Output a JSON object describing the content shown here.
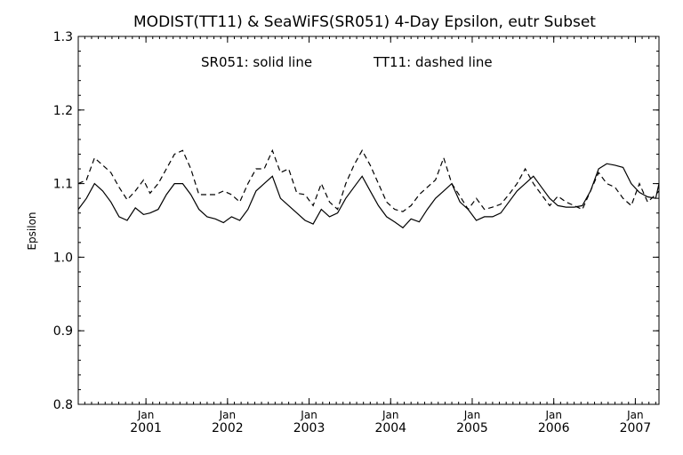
{
  "chart_data": {
    "type": "line",
    "title": "MODIST(TT11) & SeaWiFS(SR051) 4-Day Epsilon, eutr Subset",
    "legend_text": {
      "solid": "SR051: solid line",
      "dashed": "TT11: dashed line"
    },
    "ylabel": "Epsilon",
    "xlabel": "",
    "ylim": [
      0.8,
      1.3
    ],
    "yticks": [
      "0.8",
      "0.9",
      "1.0",
      "1.1",
      "1.2",
      "1.3"
    ],
    "xlim": [
      2000.17,
      2007.29
    ],
    "xticks": [
      {
        "month": "Jan",
        "year": "2001",
        "x": 2001.0
      },
      {
        "month": "Jan",
        "year": "2002",
        "x": 2002.0
      },
      {
        "month": "Jan",
        "year": "2003",
        "x": 2003.0
      },
      {
        "month": "Jan",
        "year": "2004",
        "x": 2004.0
      },
      {
        "month": "Jan",
        "year": "2005",
        "x": 2005.0
      },
      {
        "month": "Jan",
        "year": "2006",
        "x": 2006.0
      },
      {
        "month": "Jan",
        "year": "2007",
        "x": 2007.0
      }
    ],
    "grid": false,
    "series": [
      {
        "name": "SR051",
        "style": "solid",
        "color": "#000000",
        "x": [
          2000.17,
          2000.27,
          2000.37,
          2000.47,
          2000.57,
          2000.67,
          2000.77,
          2000.87,
          2000.97,
          2001.05,
          2001.15,
          2001.25,
          2001.35,
          2001.45,
          2001.55,
          2001.65,
          2001.75,
          2001.85,
          2001.95,
          2002.05,
          2002.15,
          2002.25,
          2002.35,
          2002.45,
          2002.55,
          2002.65,
          2002.75,
          2002.85,
          2002.95,
          2003.05,
          2003.15,
          2003.25,
          2003.35,
          2003.45,
          2003.55,
          2003.65,
          2003.75,
          2003.85,
          2003.95,
          2004.05,
          2004.15,
          2004.25,
          2004.35,
          2004.45,
          2004.55,
          2004.65,
          2004.75,
          2004.85,
          2004.95,
          2005.05,
          2005.15,
          2005.25,
          2005.35,
          2005.45,
          2005.55,
          2005.65,
          2005.75,
          2005.85,
          2005.95,
          2006.05,
          2006.15,
          2006.25,
          2006.35,
          2006.45,
          2006.55,
          2006.65,
          2006.75,
          2006.85,
          2006.95,
          2007.05,
          2007.15,
          2007.25,
          2007.29
        ],
        "y": [
          1.065,
          1.08,
          1.1,
          1.09,
          1.075,
          1.055,
          1.05,
          1.067,
          1.058,
          1.06,
          1.065,
          1.085,
          1.1,
          1.1,
          1.085,
          1.065,
          1.055,
          1.052,
          1.047,
          1.055,
          1.05,
          1.065,
          1.09,
          1.1,
          1.11,
          1.08,
          1.07,
          1.06,
          1.05,
          1.045,
          1.065,
          1.055,
          1.06,
          1.08,
          1.095,
          1.11,
          1.09,
          1.07,
          1.055,
          1.048,
          1.04,
          1.052,
          1.048,
          1.065,
          1.08,
          1.09,
          1.1,
          1.075,
          1.065,
          1.05,
          1.055,
          1.055,
          1.06,
          1.075,
          1.09,
          1.1,
          1.11,
          1.095,
          1.08,
          1.07,
          1.068,
          1.068,
          1.07,
          1.09,
          1.12,
          1.127,
          1.125,
          1.122,
          1.1,
          1.088,
          1.082,
          1.08,
          1.1
        ]
      },
      {
        "name": "TT11",
        "style": "dashed",
        "color": "#000000",
        "x": [
          2000.17,
          2000.27,
          2000.37,
          2000.47,
          2000.57,
          2000.67,
          2000.77,
          2000.87,
          2000.97,
          2001.05,
          2001.15,
          2001.25,
          2001.35,
          2001.45,
          2001.55,
          2001.65,
          2001.75,
          2001.85,
          2001.95,
          2002.05,
          2002.15,
          2002.25,
          2002.35,
          2002.45,
          2002.55,
          2002.65,
          2002.75,
          2002.85,
          2002.95,
          2003.05,
          2003.15,
          2003.25,
          2003.35,
          2003.45,
          2003.55,
          2003.65,
          2003.75,
          2003.85,
          2003.95,
          2004.05,
          2004.15,
          2004.25,
          2004.35,
          2004.45,
          2004.55,
          2004.65,
          2004.75,
          2004.85,
          2004.95,
          2005.05,
          2005.15,
          2005.25,
          2005.35,
          2005.45,
          2005.55,
          2005.65,
          2005.75,
          2005.85,
          2005.95,
          2006.05,
          2006.15,
          2006.25,
          2006.35,
          2006.45,
          2006.55,
          2006.65,
          2006.75,
          2006.85,
          2006.95,
          2007.05,
          2007.15,
          2007.25,
          2007.29
        ],
        "y": [
          1.1,
          1.105,
          1.135,
          1.125,
          1.115,
          1.095,
          1.078,
          1.09,
          1.105,
          1.087,
          1.1,
          1.12,
          1.14,
          1.145,
          1.12,
          1.085,
          1.085,
          1.085,
          1.09,
          1.085,
          1.075,
          1.1,
          1.12,
          1.12,
          1.145,
          1.115,
          1.12,
          1.087,
          1.085,
          1.07,
          1.1,
          1.075,
          1.065,
          1.1,
          1.125,
          1.145,
          1.125,
          1.1,
          1.075,
          1.065,
          1.062,
          1.07,
          1.085,
          1.095,
          1.105,
          1.135,
          1.1,
          1.083,
          1.065,
          1.08,
          1.065,
          1.068,
          1.072,
          1.085,
          1.1,
          1.12,
          1.1,
          1.085,
          1.07,
          1.083,
          1.075,
          1.07,
          1.065,
          1.09,
          1.115,
          1.1,
          1.095,
          1.08,
          1.07,
          1.1,
          1.075,
          1.085,
          1.09
        ]
      }
    ]
  }
}
